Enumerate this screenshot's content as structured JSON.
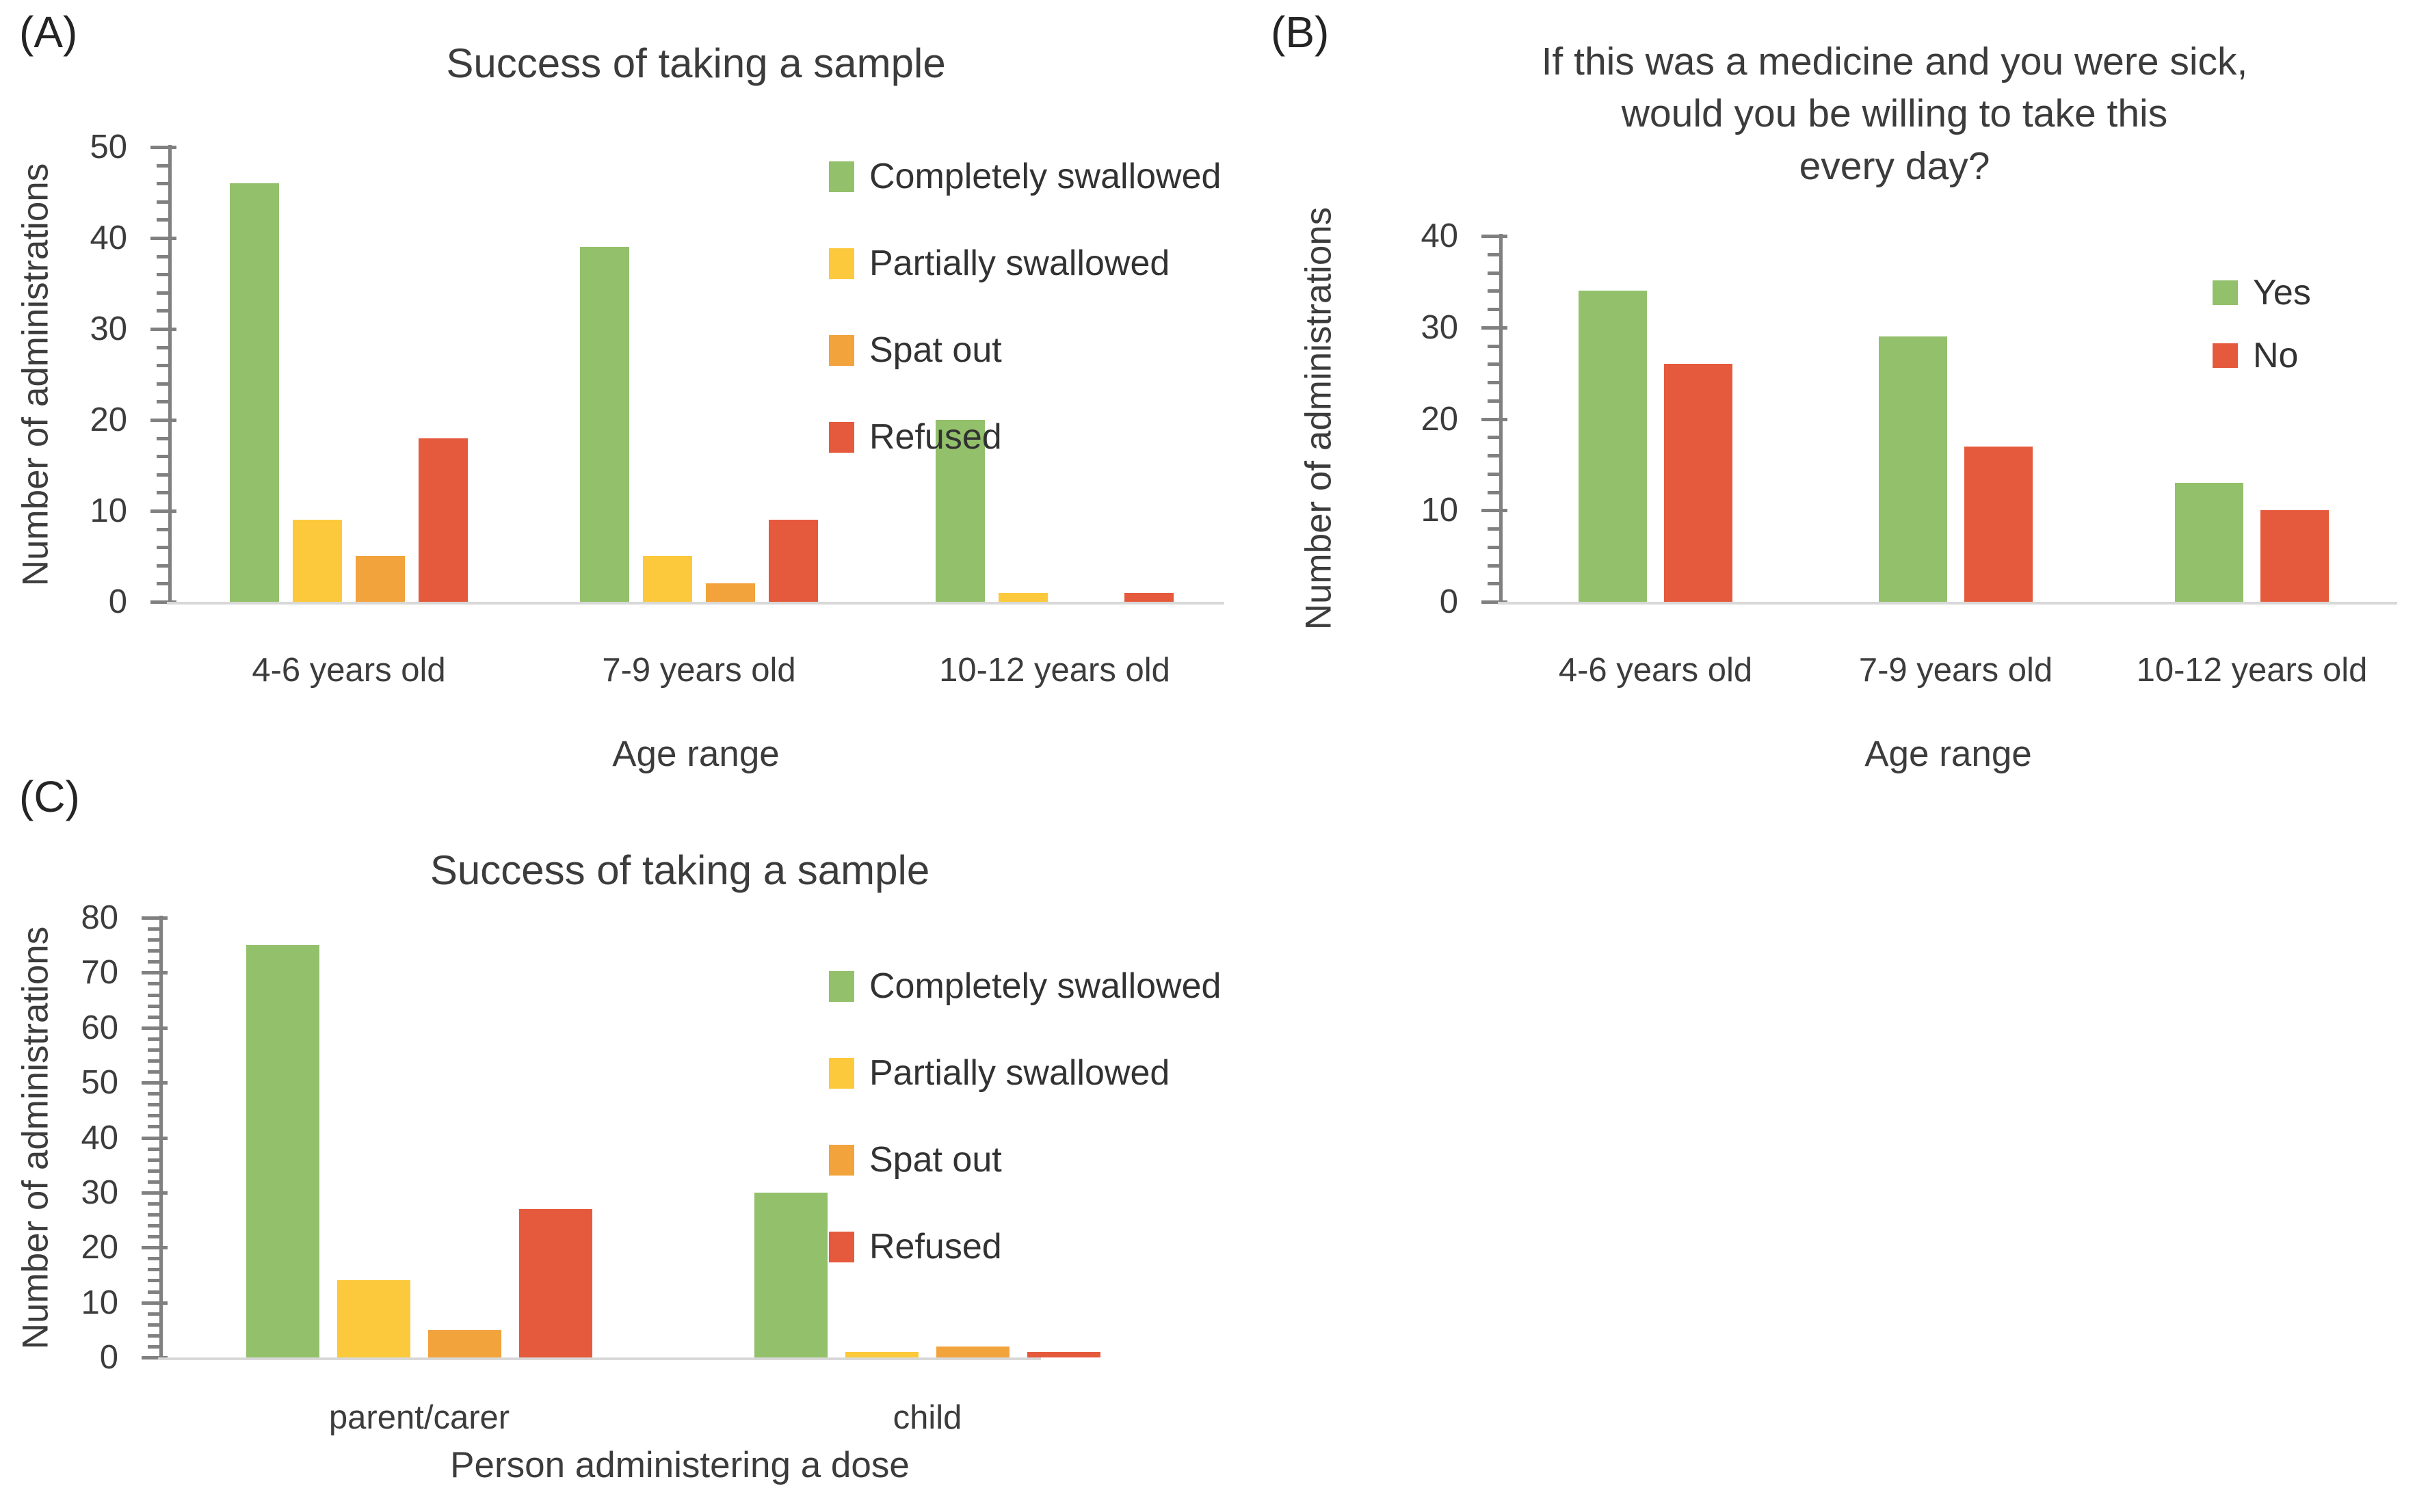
{
  "figure": {
    "background": "#ffffff",
    "axis_line_color": "#808080",
    "baseline_color": "#d8d8d8",
    "text_color": "#3c3c3c"
  },
  "chart_data": [
    {
      "type": "bar",
      "panel": "(A)",
      "title": "Success of taking a sample",
      "ylabel": "Number of administrations",
      "xlabel": "Age range",
      "categories": [
        "4-6 years old",
        "7-9 years old",
        "10-12 years old"
      ],
      "series": [
        {
          "name": "Completely swallowed",
          "color": "#93c06a",
          "values": [
            46,
            39,
            20
          ]
        },
        {
          "name": "Partially swallowed",
          "color": "#fcc93c",
          "values": [
            9,
            5,
            1
          ]
        },
        {
          "name": "Spat out",
          "color": "#f2a33c",
          "values": [
            5,
            2,
            0
          ]
        },
        {
          "name": "Refused",
          "color": "#e55a3c",
          "values": [
            18,
            9,
            1
          ]
        }
      ],
      "ylim": [
        0,
        50
      ],
      "ytick_step": 10,
      "minor_tick_step": 2,
      "grid": false,
      "legend_position": "inside-upper-right"
    },
    {
      "type": "bar",
      "panel": "(B)",
      "title": "If this was a medicine and you were sick, would you be willing to take this every day?",
      "title_lines": [
        "If this was a medicine and you were sick,",
        "would you be willing to take this",
        "every day?"
      ],
      "ylabel": "Number of administrations",
      "xlabel": "Age range",
      "categories": [
        "4-6 years old",
        "7-9 years old",
        "10-12 years old"
      ],
      "series": [
        {
          "name": "Yes",
          "color": "#93c06a",
          "values": [
            34,
            29,
            13
          ]
        },
        {
          "name": "No",
          "color": "#e55a3c",
          "values": [
            26,
            17,
            10
          ]
        }
      ],
      "ylim": [
        0,
        40
      ],
      "ytick_step": 10,
      "minor_tick_step": 2,
      "grid": false,
      "legend_position": "inside-right"
    },
    {
      "type": "bar",
      "panel": "(C)",
      "title": "Success of taking a sample",
      "ylabel": "Number of administrations",
      "xlabel": "Person administering a dose",
      "categories": [
        "parent/carer",
        "child"
      ],
      "series": [
        {
          "name": "Completely swallowed",
          "color": "#93c06a",
          "values": [
            75,
            30
          ]
        },
        {
          "name": "Partially swallowed",
          "color": "#fcc93c",
          "values": [
            14,
            1
          ]
        },
        {
          "name": "Spat out",
          "color": "#f2a33c",
          "values": [
            5,
            2
          ]
        },
        {
          "name": "Refused",
          "color": "#e55a3c",
          "values": [
            27,
            1
          ]
        }
      ],
      "ylim": [
        0,
        80
      ],
      "ytick_step": 10,
      "minor_tick_step": 2,
      "grid": false,
      "legend_position": "inside-upper-right"
    }
  ]
}
